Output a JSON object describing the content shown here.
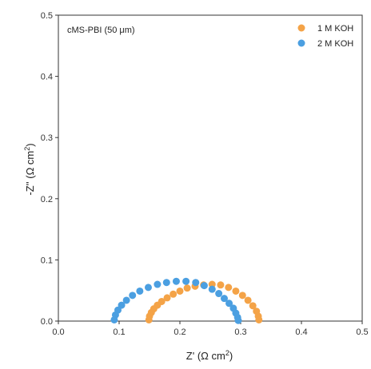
{
  "chart_data": {
    "type": "scatter",
    "annotation": "cMS-PBI (50 μm)",
    "xlabel_main": "Z' (Ω cm",
    "xlabel_sup": "2",
    "xlabel_end": ")",
    "ylabel_main": "-Z'' (Ω cm",
    "ylabel_sup": "2",
    "ylabel_end": ")",
    "xlim": [
      0.0,
      0.5
    ],
    "ylim": [
      0.0,
      0.5
    ],
    "xticks": [
      "0.0",
      "0.1",
      "0.2",
      "0.3",
      "0.4",
      "0.5"
    ],
    "yticks": [
      "0.0",
      "0.1",
      "0.2",
      "0.3",
      "0.4",
      "0.5"
    ],
    "legend_position": "top-right",
    "series": [
      {
        "name": "1 M KOH",
        "color": "#F4A347",
        "points": [
          [
            0.149,
            0.002
          ],
          [
            0.15,
            0.008
          ],
          [
            0.153,
            0.014
          ],
          [
            0.157,
            0.02
          ],
          [
            0.163,
            0.026
          ],
          [
            0.17,
            0.032
          ],
          [
            0.179,
            0.038
          ],
          [
            0.189,
            0.044
          ],
          [
            0.2,
            0.049
          ],
          [
            0.212,
            0.054
          ],
          [
            0.225,
            0.057
          ],
          [
            0.239,
            0.059
          ],
          [
            0.253,
            0.06
          ],
          [
            0.267,
            0.059
          ],
          [
            0.28,
            0.055
          ],
          [
            0.292,
            0.049
          ],
          [
            0.303,
            0.042
          ],
          [
            0.312,
            0.034
          ],
          [
            0.32,
            0.025
          ],
          [
            0.326,
            0.016
          ],
          [
            0.329,
            0.008
          ],
          [
            0.33,
            0.002
          ]
        ]
      },
      {
        "name": "2 M KOH",
        "color": "#4B9FE1",
        "points": [
          [
            0.092,
            0.002
          ],
          [
            0.094,
            0.01
          ],
          [
            0.098,
            0.018
          ],
          [
            0.104,
            0.026
          ],
          [
            0.112,
            0.034
          ],
          [
            0.122,
            0.042
          ],
          [
            0.134,
            0.049
          ],
          [
            0.148,
            0.055
          ],
          [
            0.163,
            0.06
          ],
          [
            0.178,
            0.063
          ],
          [
            0.194,
            0.065
          ],
          [
            0.21,
            0.065
          ],
          [
            0.226,
            0.063
          ],
          [
            0.24,
            0.058
          ],
          [
            0.253,
            0.052
          ],
          [
            0.264,
            0.045
          ],
          [
            0.273,
            0.037
          ],
          [
            0.281,
            0.029
          ],
          [
            0.288,
            0.021
          ],
          [
            0.292,
            0.013
          ],
          [
            0.295,
            0.006
          ],
          [
            0.296,
            0.001
          ]
        ]
      }
    ]
  }
}
